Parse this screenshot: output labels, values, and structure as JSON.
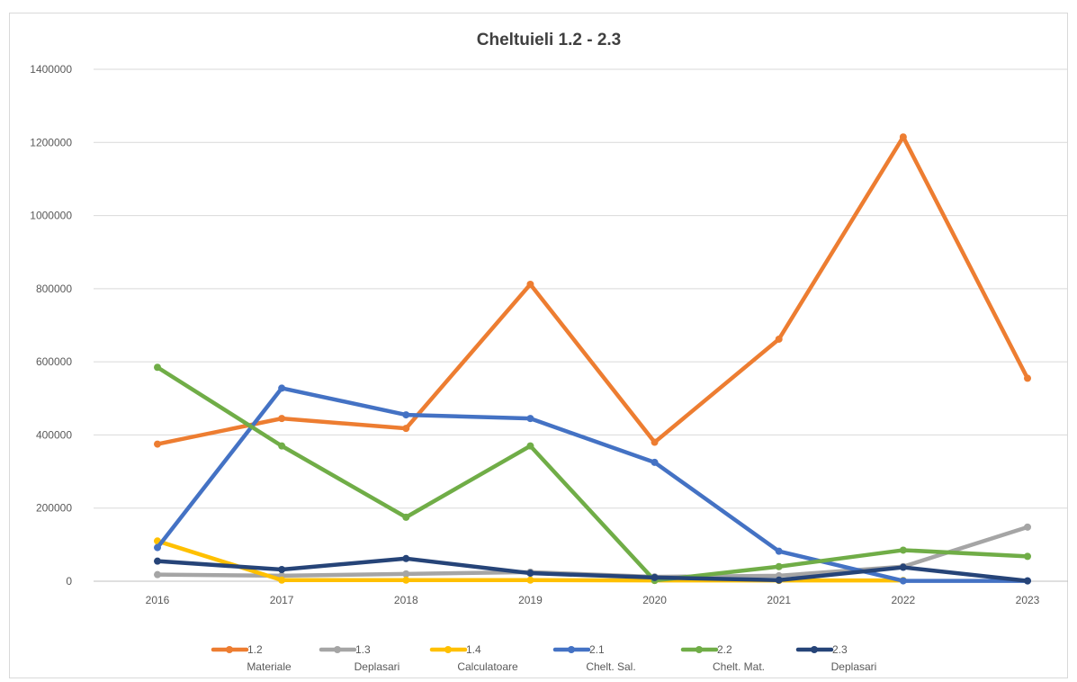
{
  "chart_data": {
    "type": "line",
    "title": "Cheltuieli 1.2 - 2.3",
    "xlabel": "",
    "ylabel": "",
    "categories": [
      "2016",
      "2017",
      "2018",
      "2019",
      "2020",
      "2021",
      "2022",
      "2023"
    ],
    "ylim": [
      0,
      1400000
    ],
    "yticks": [
      "0",
      "200000",
      "400000",
      "600000",
      "800000",
      "1000000",
      "1200000",
      "1400000"
    ],
    "grid": true,
    "legend_position": "bottom",
    "series": [
      {
        "name": "1.2 Materiale",
        "label_line1": "1.2",
        "label_line2": "Materiale",
        "color": "#ED7D31",
        "values": [
          375000,
          445000,
          418000,
          812000,
          380000,
          662000,
          1215000,
          555000
        ]
      },
      {
        "name": "1.3 Deplasari",
        "label_line1": "1.3",
        "label_line2": "Deplasari",
        "color": "#A5A5A5",
        "values": [
          18000,
          15000,
          20000,
          25000,
          12000,
          15000,
          40000,
          148000
        ]
      },
      {
        "name": "1.4 Calculatoare",
        "label_line1": "1.4",
        "label_line2": "Calculatoare",
        "color": "#FFC000",
        "values": [
          110000,
          3000,
          3000,
          3000,
          2000,
          2000,
          2000,
          null
        ]
      },
      {
        "name": "2.1 Chelt. Sal.",
        "label_line1": "2.1",
        "label_line2": "Chelt. Sal.",
        "color": "#4472C4",
        "values": [
          92000,
          528000,
          455000,
          445000,
          325000,
          82000,
          1000,
          1000
        ]
      },
      {
        "name": "2.2 Chelt. Mat.",
        "label_line1": "2.2",
        "label_line2": "Chelt. Mat.",
        "color": "#70AD47",
        "values": [
          585000,
          370000,
          175000,
          370000,
          2000,
          40000,
          85000,
          68000
        ]
      },
      {
        "name": "2.3 Deplasari",
        "label_line1": "2.3",
        "label_line2": "Deplasari",
        "color": "#264478",
        "values": [
          55000,
          32000,
          62000,
          22000,
          10000,
          3000,
          38000,
          1000
        ]
      }
    ]
  }
}
